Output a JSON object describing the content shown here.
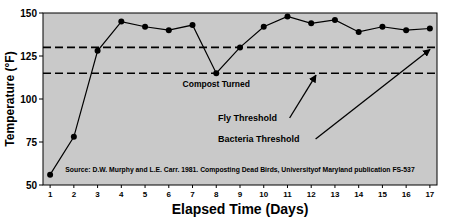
{
  "chart_data": {
    "type": "line",
    "x_label": "Elapsed Time (Days)",
    "y_label": "Temperature (°F)",
    "x": [
      1,
      2,
      3,
      4,
      5,
      6,
      7,
      8,
      9,
      10,
      11,
      12,
      13,
      14,
      15,
      16,
      17
    ],
    "values": [
      56,
      78,
      128,
      145,
      142,
      140,
      143,
      115,
      130,
      142,
      148,
      144,
      146,
      139,
      142,
      140,
      141
    ],
    "color": "#000000",
    "marker": "circle",
    "line_style": "solid",
    "xlim": [
      0.7,
      17.3
    ],
    "xticks": [
      1,
      2,
      3,
      4,
      5,
      6,
      7,
      8,
      9,
      10,
      11,
      12,
      13,
      14,
      15,
      16,
      17
    ],
    "ylim": [
      50,
      150
    ],
    "yticks": [
      50,
      75,
      100,
      125,
      150
    ],
    "grid": false,
    "thresholds": [
      {
        "label": "Fly Threshold",
        "value": 115
      },
      {
        "label": "Bacteria Threshold",
        "value": 130
      }
    ],
    "annotations": [
      {
        "text": "Compost Turned",
        "x": 8,
        "y": 115
      }
    ],
    "source": "Source: D.W. Murphy and L.E. Carr. 1981. Composting Dead Birds, Universityof Maryland publication FS-537"
  }
}
